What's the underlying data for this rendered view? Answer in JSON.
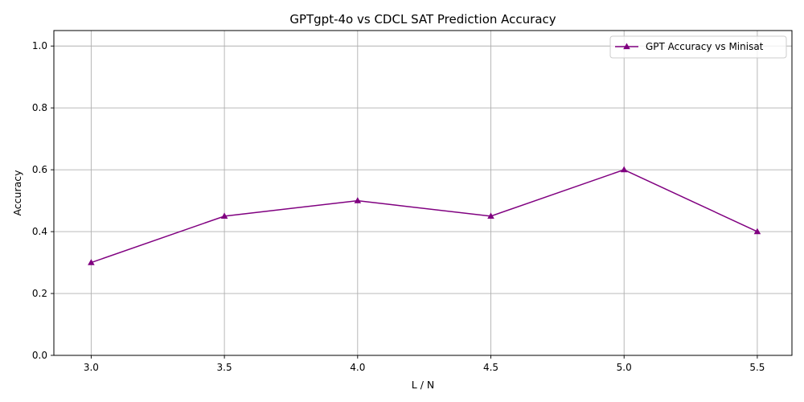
{
  "chart_data": {
    "type": "line",
    "title": "GPTgpt-4o vs CDCL SAT Prediction Accuracy",
    "xlabel": "L / N",
    "ylabel": "Accuracy",
    "x": [
      3.0,
      3.5,
      4.0,
      4.5,
      5.0,
      5.5
    ],
    "x_tick_labels": [
      "3.0",
      "3.5",
      "4.0",
      "4.5",
      "5.0",
      "5.5"
    ],
    "y_ticks": [
      0.0,
      0.2,
      0.4,
      0.6,
      0.8,
      1.0
    ],
    "y_tick_labels": [
      "0.0",
      "0.2",
      "0.4",
      "0.6",
      "0.8",
      "1.0"
    ],
    "xlim": [
      2.86,
      5.63
    ],
    "ylim": [
      0.0,
      1.05
    ],
    "grid": true,
    "legend_position": "upper right",
    "series": [
      {
        "name": "GPT Accuracy vs Minisat",
        "color": "#800080",
        "marker": "triangle-up",
        "values": [
          0.3,
          0.45,
          0.5,
          0.45,
          0.6,
          0.4
        ]
      }
    ]
  }
}
